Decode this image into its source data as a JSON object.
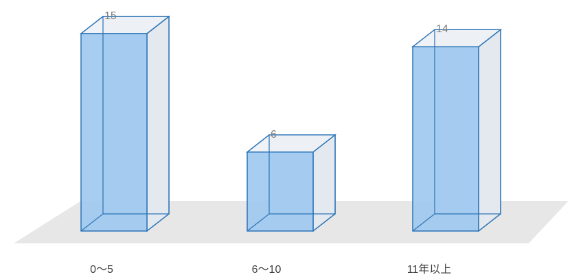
{
  "chart_data": {
    "type": "bar",
    "categories": [
      "0～5",
      "6～10",
      "11年以上"
    ],
    "values": [
      15,
      6,
      14
    ],
    "title": "",
    "xlabel": "",
    "ylabel": "",
    "ylim": [
      0,
      15
    ],
    "grid": false,
    "legend": "none",
    "style": "3d-column",
    "colors": {
      "bar_fill": "#9fc9f0",
      "bar_edge": "#2e75b6",
      "bar_back": "#e4e9ef",
      "floor": "#e7e7e7",
      "data_label": "#7f7f7f",
      "tick_label": "#404040"
    }
  }
}
